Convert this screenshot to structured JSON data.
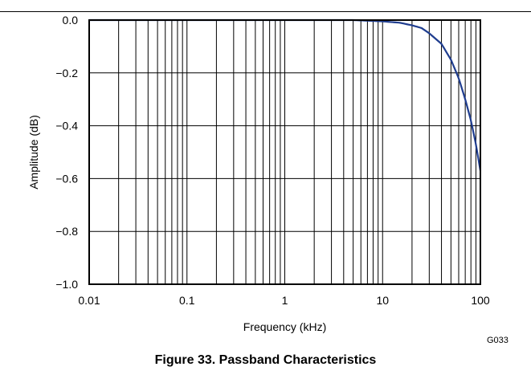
{
  "chart_data": {
    "type": "line",
    "title": "",
    "xlabel": "Frequency (kHz)",
    "ylabel": "Amplitude (dB)",
    "x_scale": "log",
    "xlim": [
      0.01,
      100
    ],
    "ylim": [
      -1.0,
      0.0
    ],
    "grid": true,
    "x_ticks": [
      "0.01",
      "0.1",
      "1",
      "10",
      "100"
    ],
    "y_ticks": [
      "0.0",
      "−0.2",
      "−0.4",
      "−0.6",
      "−0.8",
      "−1.0"
    ],
    "series": [
      {
        "color": "#1f3d8f",
        "x": [
          0.01,
          0.1,
          1,
          5,
          10,
          15,
          20,
          25,
          30,
          40,
          50,
          60,
          70,
          80,
          90,
          100
        ],
        "y": [
          0.0,
          0.0,
          0.0,
          0.0,
          -0.005,
          -0.01,
          -0.02,
          -0.03,
          -0.05,
          -0.09,
          -0.15,
          -0.22,
          -0.3,
          -0.38,
          -0.47,
          -0.57
        ]
      }
    ]
  },
  "figure_code": "G033",
  "caption": "Figure 33. Passband Characteristics"
}
